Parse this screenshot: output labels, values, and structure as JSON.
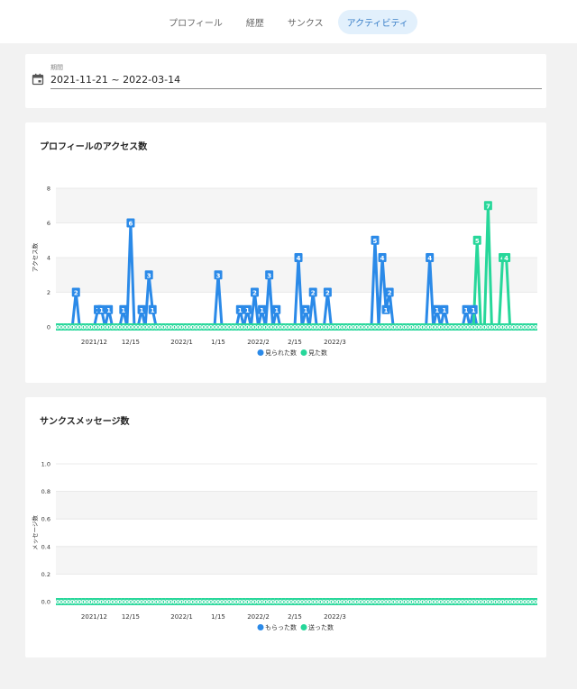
{
  "nav": {
    "tabs": [
      {
        "label": "プロフィール",
        "active": false
      },
      {
        "label": "経歴",
        "active": false
      },
      {
        "label": "サンクス",
        "active": false
      },
      {
        "label": "アクティビティ",
        "active": true
      }
    ]
  },
  "period": {
    "label": "期間",
    "value": "2021-11-21 ~ 2022-03-14",
    "icon": "calendar-icon"
  },
  "colors": {
    "blue": "#2b8ae8",
    "green": "#27d79a"
  },
  "chart_data": [
    {
      "type": "line",
      "title": "プロフィールのアクセス数",
      "ylabel": "アクセス数",
      "ylim": [
        0,
        8
      ],
      "yticks": [
        "0",
        "2",
        "4",
        "6",
        "8"
      ],
      "x_labels": [
        "2021/12",
        "12/15",
        "2022/1",
        "1/15",
        "2022/2",
        "2/15",
        "2022/3"
      ],
      "x_label_indexes": [
        10,
        20,
        34,
        44,
        55,
        65,
        76
      ],
      "legend": "bottom",
      "series": [
        {
          "name": "見られた数",
          "color": "#2b8ae8",
          "values": [
            0,
            0,
            0,
            0,
            0,
            2,
            0,
            0,
            0,
            0,
            0,
            1,
            1,
            0,
            1,
            0,
            0,
            0,
            1,
            0,
            6,
            0,
            0,
            1,
            0,
            3,
            1,
            0,
            0,
            0,
            0,
            0,
            0,
            0,
            0,
            0,
            0,
            0,
            0,
            0,
            0,
            0,
            0,
            0,
            3,
            0,
            0,
            0,
            0,
            0,
            1,
            0,
            1,
            0,
            2,
            0,
            1,
            0,
            3,
            0,
            1,
            0,
            0,
            0,
            0,
            0,
            4,
            0,
            1,
            0,
            2,
            0,
            0,
            0,
            2,
            0,
            0,
            0,
            0,
            0,
            0,
            0,
            0,
            0,
            0,
            0,
            0,
            5,
            0,
            4,
            1,
            2,
            0,
            0,
            0,
            0,
            0,
            0,
            0,
            0,
            0,
            0,
            4,
            0,
            1,
            0,
            1,
            0,
            0,
            0,
            0,
            0,
            1,
            0,
            1,
            0,
            0,
            0,
            0,
            0,
            0,
            0,
            0,
            0,
            0,
            0,
            0,
            0,
            0,
            0,
            0,
            0
          ]
        },
        {
          "name": "見た数",
          "color": "#27d79a",
          "values": [
            0,
            0,
            0,
            0,
            0,
            0,
            0,
            0,
            0,
            0,
            0,
            0,
            0,
            0,
            0,
            0,
            0,
            0,
            0,
            0,
            0,
            0,
            0,
            0,
            0,
            0,
            0,
            0,
            0,
            0,
            0,
            0,
            0,
            0,
            0,
            0,
            0,
            0,
            0,
            0,
            0,
            0,
            0,
            0,
            0,
            0,
            0,
            0,
            0,
            0,
            0,
            0,
            0,
            0,
            0,
            0,
            0,
            0,
            0,
            0,
            0,
            0,
            0,
            0,
            0,
            0,
            0,
            0,
            0,
            0,
            0,
            0,
            0,
            0,
            0,
            0,
            0,
            0,
            0,
            0,
            0,
            0,
            0,
            0,
            0,
            0,
            0,
            0,
            0,
            0,
            0,
            0,
            0,
            0,
            0,
            0,
            0,
            0,
            0,
            0,
            0,
            0,
            0,
            0,
            0,
            0,
            0,
            0,
            0,
            0,
            0,
            0,
            0,
            0,
            0,
            5,
            0,
            0,
            7,
            0,
            0,
            0,
            4,
            4,
            0,
            0,
            0,
            0,
            0,
            0,
            0,
            0
          ]
        }
      ]
    },
    {
      "type": "line",
      "title": "サンクスメッセージ数",
      "ylabel": "メッセージ数",
      "ylim": [
        0,
        1
      ],
      "yticks": [
        "0.0",
        "0.2",
        "0.4",
        "0.6",
        "0.8",
        "1.0"
      ],
      "x_labels": [
        "2021/12",
        "12/15",
        "2022/1",
        "1/15",
        "2022/2",
        "2/15",
        "2022/3"
      ],
      "x_label_indexes": [
        10,
        20,
        34,
        44,
        55,
        65,
        76
      ],
      "legend": "bottom",
      "series": [
        {
          "name": "もらった数",
          "color": "#2b8ae8",
          "values": [
            0,
            0,
            0,
            0,
            0,
            0,
            0,
            0,
            0,
            0,
            0,
            0,
            0,
            0,
            0,
            0,
            0,
            0,
            0,
            0,
            0,
            0,
            0,
            0,
            0,
            0,
            0,
            0,
            0,
            0,
            0,
            0,
            0,
            0,
            0,
            0,
            0,
            0,
            0,
            0,
            0,
            0,
            0,
            0,
            0,
            0,
            0,
            0,
            0,
            0,
            0,
            0,
            0,
            0,
            0,
            0,
            0,
            0,
            0,
            0,
            0,
            0,
            0,
            0,
            0,
            0,
            0,
            0,
            0,
            0,
            0,
            0,
            0,
            0,
            0,
            0,
            0,
            0,
            0,
            0,
            0,
            0,
            0,
            0,
            0,
            0,
            0,
            0,
            0,
            0,
            0,
            0,
            0,
            0,
            0,
            0,
            0,
            0,
            0,
            0,
            0,
            0,
            0,
            0,
            0,
            0,
            0,
            0,
            0,
            0,
            0,
            0,
            0,
            0,
            0,
            0,
            0,
            0,
            0,
            0,
            0,
            0,
            0,
            0,
            0,
            0,
            0,
            0,
            0,
            0,
            0,
            0
          ]
        },
        {
          "name": "送った数",
          "color": "#27d79a",
          "values": [
            0,
            0,
            0,
            0,
            0,
            0,
            0,
            0,
            0,
            0,
            0,
            0,
            0,
            0,
            0,
            0,
            0,
            0,
            0,
            0,
            0,
            0,
            0,
            0,
            0,
            0,
            0,
            0,
            0,
            0,
            0,
            0,
            0,
            0,
            0,
            0,
            0,
            0,
            0,
            0,
            0,
            0,
            0,
            0,
            0,
            0,
            0,
            0,
            0,
            0,
            0,
            0,
            0,
            0,
            0,
            0,
            0,
            0,
            0,
            0,
            0,
            0,
            0,
            0,
            0,
            0,
            0,
            0,
            0,
            0,
            0,
            0,
            0,
            0,
            0,
            0,
            0,
            0,
            0,
            0,
            0,
            0,
            0,
            0,
            0,
            0,
            0,
            0,
            0,
            0,
            0,
            0,
            0,
            0,
            0,
            0,
            0,
            0,
            0,
            0,
            0,
            0,
            0,
            0,
            0,
            0,
            0,
            0,
            0,
            0,
            0,
            0,
            0,
            0,
            0,
            0,
            0,
            0,
            0,
            0,
            0,
            0,
            0,
            0,
            0,
            0,
            0,
            0,
            0,
            0,
            0,
            0
          ]
        }
      ]
    }
  ]
}
